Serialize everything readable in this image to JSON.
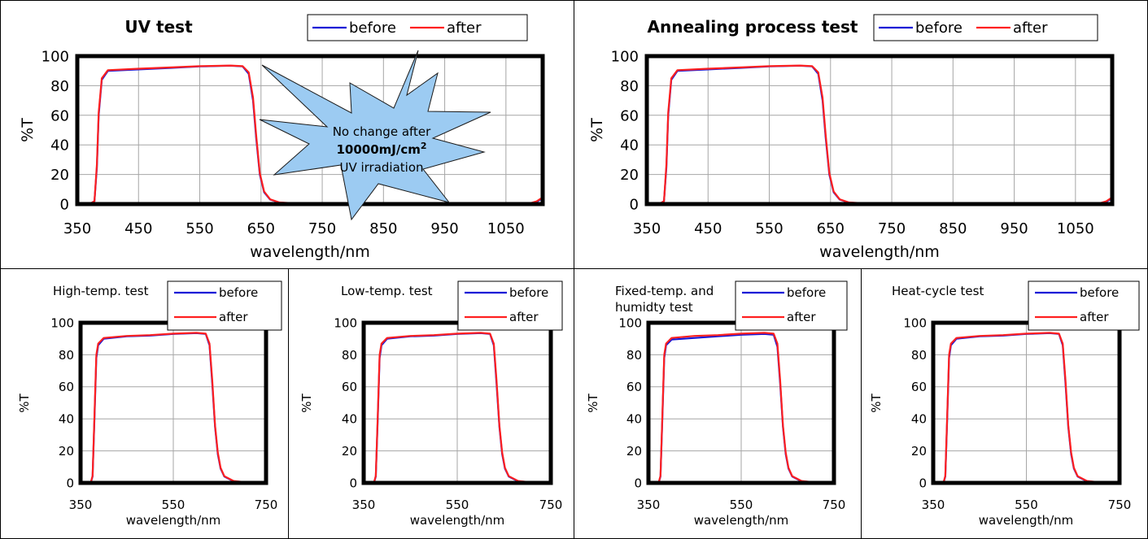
{
  "colors": {
    "before": "#1515d6",
    "after": "#ff2020",
    "callout_fill": "#9ccbf2",
    "grid": "#a6a6a6"
  },
  "callout": {
    "line1": "No change after",
    "line2": "10000mJ/cm",
    "line2_sup": "2",
    "line3": "UV irradiation"
  },
  "chart_data": [
    {
      "type": "line",
      "title": "UV test",
      "xlabel": "wavelength/nm",
      "ylabel": "%T",
      "xlim": [
        350,
        1110
      ],
      "ylim": [
        0,
        100
      ],
      "xticks": [
        350,
        450,
        550,
        650,
        750,
        850,
        950,
        1050
      ],
      "yticks": [
        0,
        20,
        40,
        60,
        80,
        100
      ],
      "legend": "top-right",
      "series": [
        {
          "name": "before",
          "x": [
            350,
            370,
            378,
            382,
            385,
            390,
            400,
            450,
            500,
            550,
            600,
            620,
            630,
            637,
            642,
            648,
            655,
            665,
            680,
            700,
            750,
            850,
            950,
            1050,
            1090,
            1100,
            1110
          ],
          "y": [
            0,
            0,
            2,
            25,
            60,
            84,
            90,
            91,
            92,
            93,
            93.5,
            93,
            88,
            70,
            45,
            20,
            8,
            3,
            1,
            0.5,
            0.3,
            0.3,
            0.3,
            0.3,
            0.5,
            1.5,
            4
          ]
        },
        {
          "name": "after",
          "x": [
            350,
            370,
            378,
            382,
            385,
            390,
            400,
            450,
            500,
            550,
            600,
            620,
            630,
            637,
            642,
            648,
            655,
            665,
            680,
            700,
            750,
            850,
            950,
            1050,
            1090,
            1100,
            1110
          ],
          "y": [
            0,
            0,
            2,
            27,
            62,
            85,
            90.5,
            91.5,
            92.3,
            93.2,
            93.6,
            93.2,
            89,
            72,
            47,
            21,
            8.5,
            3.2,
            1.1,
            0.6,
            0.4,
            0.4,
            0.4,
            0.4,
            0.6,
            1.8,
            4.5
          ]
        }
      ]
    },
    {
      "type": "line",
      "title": "Annealing process test",
      "xlabel": "wavelength/nm",
      "ylabel": "%T",
      "xlim": [
        350,
        1110
      ],
      "ylim": [
        0,
        100
      ],
      "xticks": [
        350,
        450,
        550,
        650,
        750,
        850,
        950,
        1050
      ],
      "yticks": [
        0,
        20,
        40,
        60,
        80,
        100
      ],
      "legend": "top-right",
      "series": [
        {
          "name": "before",
          "x": [
            350,
            370,
            378,
            382,
            385,
            390,
            400,
            450,
            500,
            550,
            600,
            620,
            630,
            637,
            642,
            648,
            655,
            665,
            680,
            700,
            750,
            850,
            950,
            1050,
            1090,
            1100,
            1110
          ],
          "y": [
            0,
            0,
            2,
            25,
            60,
            84,
            90,
            91,
            92,
            93,
            93.5,
            93,
            88,
            70,
            45,
            20,
            8,
            3,
            1,
            0.5,
            0.3,
            0.3,
            0.3,
            0.3,
            0.5,
            1.5,
            4
          ]
        },
        {
          "name": "after",
          "x": [
            350,
            370,
            378,
            382,
            385,
            390,
            400,
            450,
            500,
            550,
            600,
            620,
            630,
            637,
            642,
            648,
            655,
            665,
            680,
            700,
            750,
            850,
            950,
            1050,
            1090,
            1100,
            1110
          ],
          "y": [
            0,
            0,
            2,
            27,
            62,
            85,
            90.5,
            91.5,
            92.3,
            93.2,
            93.6,
            93.2,
            89,
            72,
            47,
            21,
            8.5,
            3.2,
            1.1,
            0.6,
            0.4,
            0.4,
            0.4,
            0.4,
            0.6,
            1.8,
            4.5
          ]
        }
      ]
    },
    {
      "type": "line",
      "title": "High-temp. test",
      "xlabel": "wavelength/nm",
      "ylabel": "%T",
      "xlim": [
        350,
        750
      ],
      "ylim": [
        0,
        100
      ],
      "xticks": [
        350,
        550,
        750
      ],
      "yticks": [
        0,
        20,
        40,
        60,
        80,
        100
      ],
      "legend": "top-right",
      "series": [
        {
          "name": "before",
          "x": [
            350,
            372,
            376,
            380,
            384,
            388,
            400,
            450,
            500,
            550,
            600,
            620,
            628,
            634,
            640,
            646,
            652,
            660,
            680,
            700,
            720,
            750
          ],
          "y": [
            0,
            0,
            4,
            40,
            78,
            86,
            90,
            91.5,
            92,
            93,
            93.5,
            93,
            86,
            62,
            35,
            18,
            9,
            4,
            1,
            0.5,
            0.4,
            0.4
          ]
        },
        {
          "name": "after",
          "x": [
            350,
            372,
            376,
            380,
            384,
            388,
            400,
            450,
            500,
            550,
            600,
            620,
            628,
            634,
            640,
            646,
            652,
            660,
            680,
            700,
            720,
            750
          ],
          "y": [
            0,
            0,
            4.5,
            42,
            80,
            87,
            90.5,
            91.8,
            92.3,
            93.2,
            93.7,
            93.2,
            87,
            64,
            36,
            19,
            9.5,
            4.2,
            1.2,
            0.6,
            0.5,
            0.5
          ]
        }
      ]
    },
    {
      "type": "line",
      "title": "Low-temp. test",
      "xlabel": "wavelength/nm",
      "ylabel": "%T",
      "xlim": [
        350,
        750
      ],
      "ylim": [
        0,
        100
      ],
      "xticks": [
        350,
        550,
        750
      ],
      "yticks": [
        0,
        20,
        40,
        60,
        80,
        100
      ],
      "legend": "top-right",
      "series": [
        {
          "name": "before",
          "x": [
            350,
            372,
            376,
            380,
            384,
            388,
            400,
            450,
            500,
            550,
            600,
            620,
            628,
            634,
            640,
            646,
            652,
            660,
            680,
            700,
            720,
            750
          ],
          "y": [
            0,
            0,
            4,
            40,
            78,
            86,
            90,
            91.5,
            92,
            93,
            93.5,
            93,
            86,
            62,
            35,
            18,
            9,
            4,
            1,
            0.5,
            0.4,
            0.4
          ]
        },
        {
          "name": "after",
          "x": [
            350,
            372,
            376,
            380,
            384,
            388,
            400,
            450,
            500,
            550,
            600,
            620,
            628,
            634,
            640,
            646,
            652,
            660,
            680,
            700,
            720,
            750
          ],
          "y": [
            0,
            0,
            4.5,
            42,
            80,
            87,
            90.5,
            91.8,
            92.3,
            93.2,
            93.7,
            93.2,
            87,
            64,
            36,
            19,
            9.5,
            4.2,
            1.2,
            0.6,
            0.5,
            0.5
          ]
        }
      ]
    },
    {
      "type": "line",
      "title": "Fixed-temp. and humidty test",
      "xlabel": "wavelength/nm",
      "ylabel": "%T",
      "xlim": [
        350,
        750
      ],
      "ylim": [
        0,
        100
      ],
      "xticks": [
        350,
        550,
        750
      ],
      "yticks": [
        0,
        20,
        40,
        60,
        80,
        100
      ],
      "legend": "top-right",
      "series": [
        {
          "name": "before",
          "x": [
            350,
            372,
            376,
            380,
            384,
            388,
            400,
            450,
            500,
            550,
            600,
            620,
            628,
            634,
            640,
            646,
            652,
            660,
            680,
            700,
            720,
            750
          ],
          "y": [
            0,
            0,
            4,
            40,
            78,
            86,
            89.5,
            90.5,
            91.5,
            92.5,
            93,
            92.5,
            85,
            62,
            35,
            18,
            9,
            4,
            1,
            0.5,
            0.4,
            0.4
          ]
        },
        {
          "name": "after",
          "x": [
            350,
            372,
            376,
            380,
            384,
            388,
            400,
            450,
            500,
            550,
            600,
            620,
            628,
            634,
            640,
            646,
            652,
            660,
            680,
            700,
            720,
            750
          ],
          "y": [
            0,
            0,
            4.5,
            42,
            80,
            87,
            90.5,
            91.8,
            92.3,
            93.2,
            93.7,
            93.2,
            87,
            64,
            36,
            19,
            9.5,
            4.2,
            1.2,
            0.6,
            0.5,
            0.5
          ]
        }
      ]
    },
    {
      "type": "line",
      "title": "Heat-cycle test",
      "xlabel": "wavelength/nm",
      "ylabel": "%T",
      "xlim": [
        350,
        750
      ],
      "ylim": [
        0,
        100
      ],
      "xticks": [
        350,
        550,
        750
      ],
      "yticks": [
        0,
        20,
        40,
        60,
        80,
        100
      ],
      "legend": "top-right",
      "series": [
        {
          "name": "before",
          "x": [
            350,
            372,
            376,
            380,
            384,
            388,
            400,
            450,
            500,
            550,
            600,
            620,
            628,
            634,
            640,
            646,
            652,
            660,
            680,
            700,
            720,
            750
          ],
          "y": [
            0,
            0,
            4,
            40,
            78,
            86,
            90,
            91.5,
            92,
            93,
            93.5,
            93,
            86,
            62,
            35,
            18,
            9,
            4,
            1,
            0.5,
            0.4,
            0.4
          ]
        },
        {
          "name": "after",
          "x": [
            350,
            372,
            376,
            380,
            384,
            388,
            400,
            450,
            500,
            550,
            600,
            620,
            628,
            634,
            640,
            646,
            652,
            660,
            680,
            700,
            720,
            750
          ],
          "y": [
            0,
            0,
            4.5,
            42,
            80,
            87,
            90.5,
            91.8,
            92.3,
            93.2,
            93.7,
            93.2,
            87,
            64,
            36,
            19,
            9.5,
            4.2,
            1.2,
            0.6,
            0.5,
            0.5
          ]
        }
      ]
    }
  ]
}
